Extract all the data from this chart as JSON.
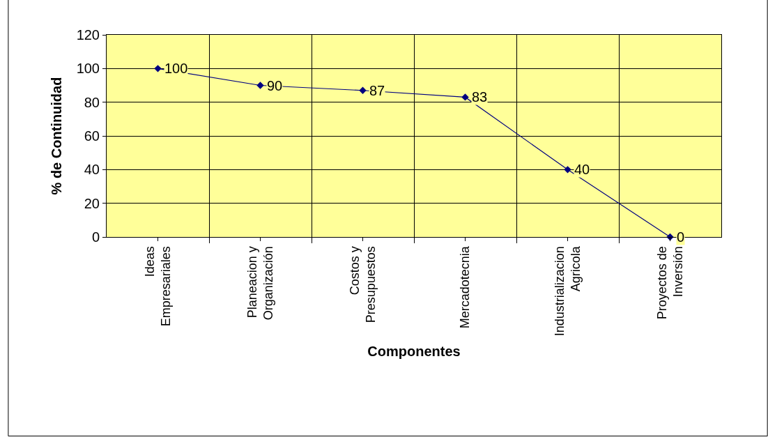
{
  "chart_data": {
    "type": "line",
    "xlabel": "Componentes",
    "ylabel": "% de Continuidad",
    "categories": [
      "Ideas\nEmpresariales",
      "Planeacion y\nOrganización",
      "Costos y\nPresupuestos",
      "Mercadotecnia",
      "Industrializacion\nAgricola",
      "Proyectos de\nInversión"
    ],
    "series": [
      {
        "color": "#000080",
        "values": [
          100,
          90,
          87,
          83,
          40,
          0
        ]
      }
    ],
    "ylim": [
      0,
      120
    ],
    "yticks": [
      0,
      20,
      40,
      60,
      80,
      100,
      120
    ],
    "grid": true,
    "legend": false,
    "marker": "diamond",
    "line_style": "solid",
    "data_labels": true
  }
}
